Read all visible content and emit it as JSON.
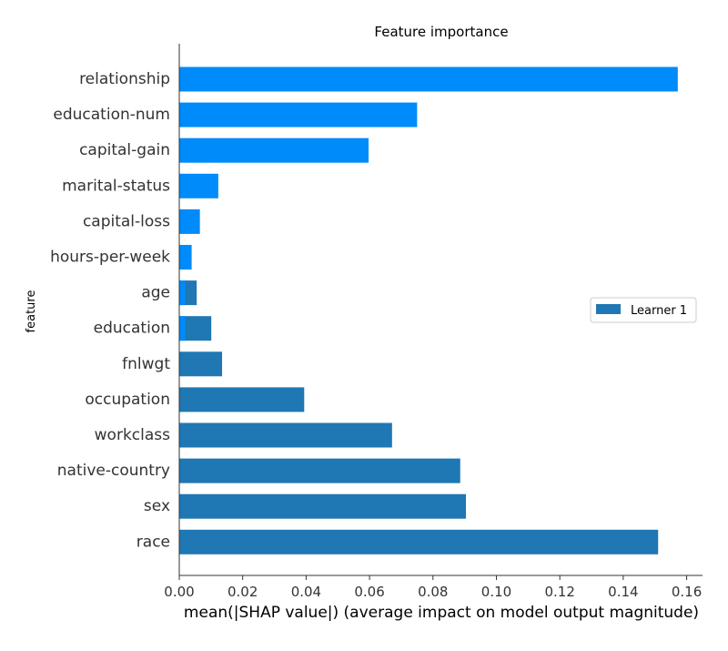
{
  "chart_data": {
    "type": "bar",
    "orientation": "horizontal",
    "title": "Feature importance",
    "xlabel": "mean(|SHAP value|) (average impact on model output magnitude)",
    "ylabel": "feature",
    "xlim": [
      0,
      0.165
    ],
    "xticks": [
      "0.00",
      "0.02",
      "0.04",
      "0.06",
      "0.08",
      "0.10",
      "0.12",
      "0.14",
      "0.16"
    ],
    "grid": false,
    "legend_position": "right",
    "categories": [
      "relationship",
      "education-num",
      "capital-gain",
      "marital-status",
      "capital-loss",
      "hours-per-week",
      "age",
      "education",
      "fnlwgt",
      "occupation",
      "workclass",
      "native-country",
      "sex",
      "race"
    ],
    "series": [
      {
        "name": "",
        "color": "#008bfb",
        "values": [
          0.1572,
          0.075,
          0.0597,
          0.0123,
          0.0065,
          0.0039,
          0.0019,
          0.0019,
          null,
          null,
          null,
          null,
          null,
          null
        ]
      },
      {
        "name": "Learner 1",
        "color": "#1f77b4",
        "values": [
          null,
          null,
          null,
          null,
          null,
          null,
          0.0055,
          0.0101,
          0.0135,
          0.0394,
          0.0671,
          0.0886,
          0.0904,
          0.151
        ]
      }
    ]
  }
}
